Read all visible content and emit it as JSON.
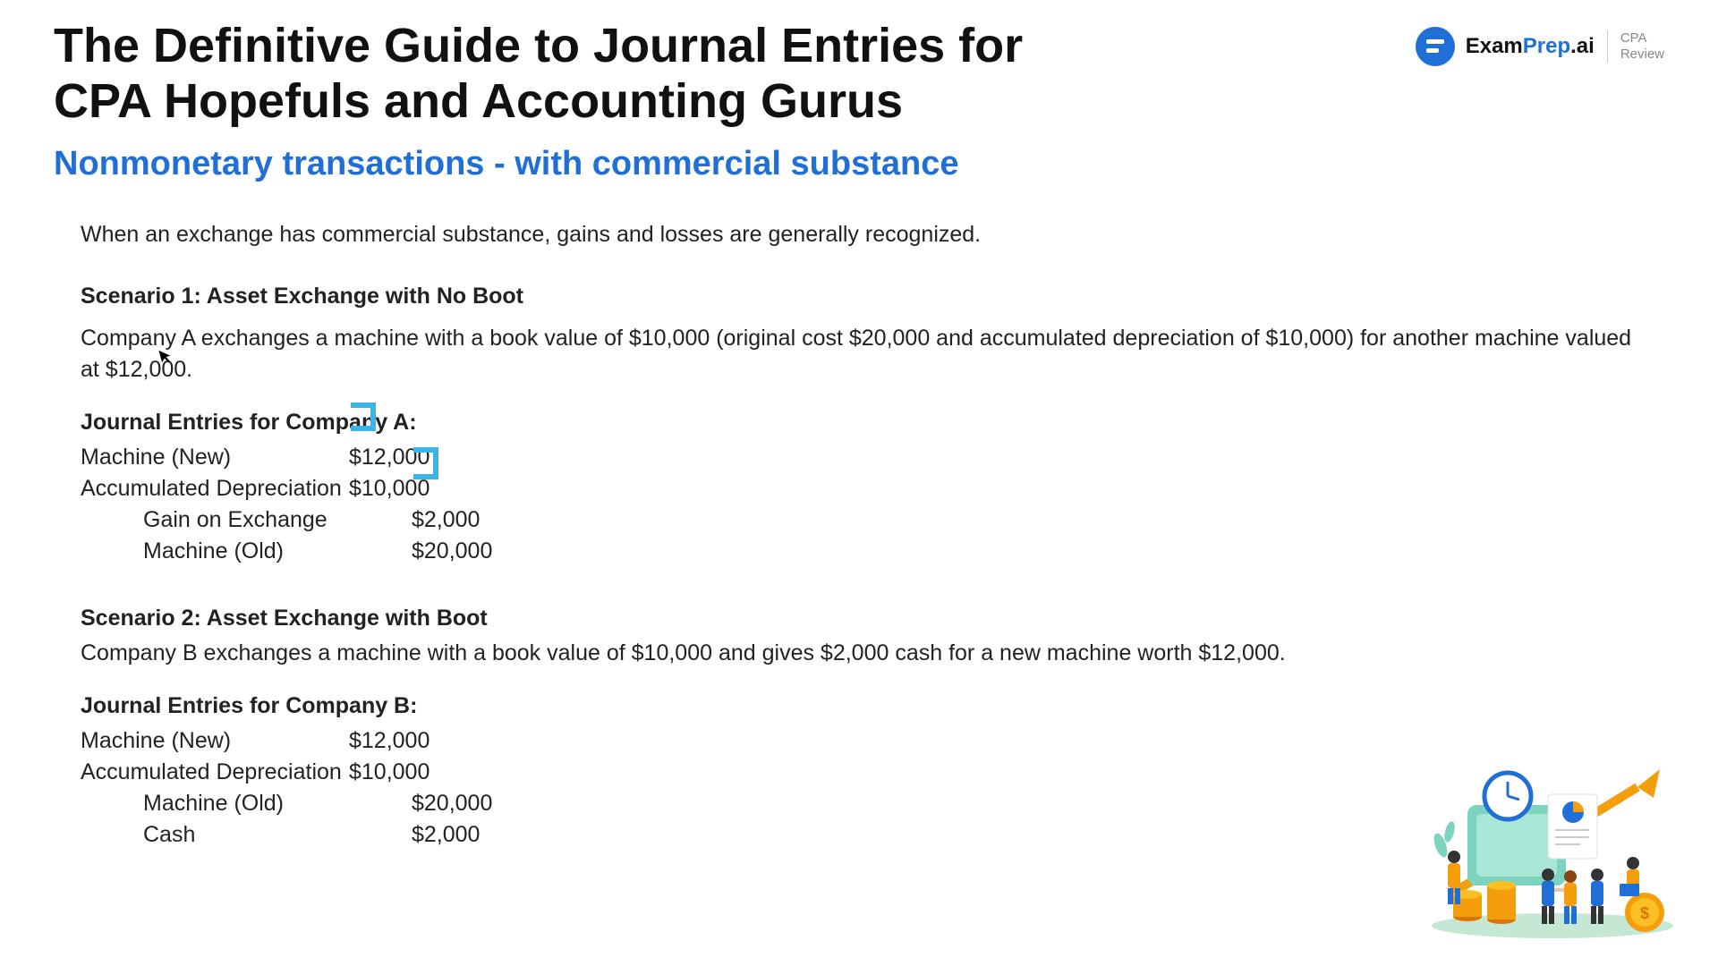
{
  "header": {
    "title": "The Definitive Guide to Journal Entries for CPA Hopefuls and Accounting Gurus",
    "subtitle": "Nonmonetary transactions - with commercial substance",
    "logo_exam": "Exam",
    "logo_prep": "Prep",
    "logo_ai": ".ai",
    "logo_sub1": "CPA",
    "logo_sub2": "Review"
  },
  "colors": {
    "brand_blue": "#1f6fd6",
    "highlight": "#3cb4e5",
    "text": "#222222",
    "muted": "#888888",
    "background": "#ffffff"
  },
  "body": {
    "intro": "When an exchange has commercial substance, gains and losses are generally recognized.",
    "scenario1_title": "Scenario 1: Asset Exchange with No Boot",
    "scenario1_text": "Company A exchanges a machine with a book value of $10,000 (original cost $20,000 and accumulated depreciation of $10,000) for another machine valued at $12,000.",
    "je1_title": "Journal Entries for Company A:",
    "je1": [
      {
        "label": "Machine (New)",
        "debit": "$12,000",
        "credit": "",
        "indent": false
      },
      {
        "label": "Accumulated Depreciation",
        "debit": "$10,000",
        "credit": "",
        "indent": false
      },
      {
        "label": "Gain on Exchange",
        "debit": "",
        "credit": "$2,000",
        "indent": true
      },
      {
        "label": "Machine (Old)",
        "debit": "",
        "credit": "$20,000",
        "indent": true
      }
    ],
    "scenario2_title": "Scenario 2: Asset Exchange with Boot",
    "scenario2_text": "Company B exchanges a machine with a book value of $10,000 and gives $2,000 cash for a new machine worth $12,000.",
    "je2_title": "Journal Entries for Company B:",
    "je2": [
      {
        "label": "Machine (New)",
        "debit": "$12,000",
        "credit": "",
        "indent": false
      },
      {
        "label": "Accumulated Depreciation",
        "debit": "$10,000",
        "credit": "",
        "indent": false
      },
      {
        "label": "Machine (Old)",
        "debit": "",
        "credit": "$20,000",
        "indent": true
      },
      {
        "label": "Cash",
        "debit": "",
        "credit": "$2,000",
        "indent": true
      }
    ]
  },
  "annotations": {
    "mark1_target": "Accumulated Depreciation $10,000",
    "mark2_target": "Machine (Old) $20,000",
    "color": "#3cb4e5",
    "stroke_width": 6
  },
  "illustration": {
    "type": "infographic",
    "description": "Flat-style business growth illustration with clock, chart, arrow, coins, people",
    "colors": {
      "orange": "#f59e0b",
      "blue": "#1f6fd6",
      "teal": "#7dd3c0",
      "green_bg": "#c5e8d5",
      "skin": "#f4c2a1"
    }
  }
}
